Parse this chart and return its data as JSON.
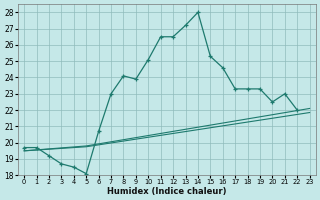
{
  "xlabel": "Humidex (Indice chaleur)",
  "background_color": "#c5e8e8",
  "grid_color": "#a8cecece",
  "line_color": "#1e7a6e",
  "xlim": [
    -0.5,
    23.5
  ],
  "ylim": [
    18,
    28.5
  ],
  "xticks": [
    0,
    1,
    2,
    3,
    4,
    5,
    6,
    7,
    8,
    9,
    10,
    11,
    12,
    13,
    14,
    15,
    16,
    17,
    18,
    19,
    20,
    21,
    22,
    23
  ],
  "yticks": [
    18,
    19,
    20,
    21,
    22,
    23,
    24,
    25,
    26,
    27,
    28
  ],
  "line1_x": [
    0,
    1,
    2,
    3,
    4,
    5,
    6,
    7,
    8,
    9,
    10,
    11,
    12,
    13,
    14,
    15,
    16,
    17,
    18,
    19,
    20,
    21,
    22
  ],
  "line1_y": [
    19.7,
    19.7,
    19.2,
    18.7,
    18.5,
    18.1,
    20.7,
    23.0,
    24.1,
    23.9,
    25.1,
    26.5,
    26.5,
    27.2,
    28.0,
    25.3,
    24.6,
    23.3,
    23.3,
    23.3,
    22.5,
    23.0,
    22.0
  ],
  "line2_x": [
    0,
    5,
    23
  ],
  "line2_y": [
    19.5,
    19.8,
    22.1
  ],
  "line3_x": [
    0,
    5,
    23
  ],
  "line3_y": [
    19.5,
    19.75,
    21.85
  ]
}
